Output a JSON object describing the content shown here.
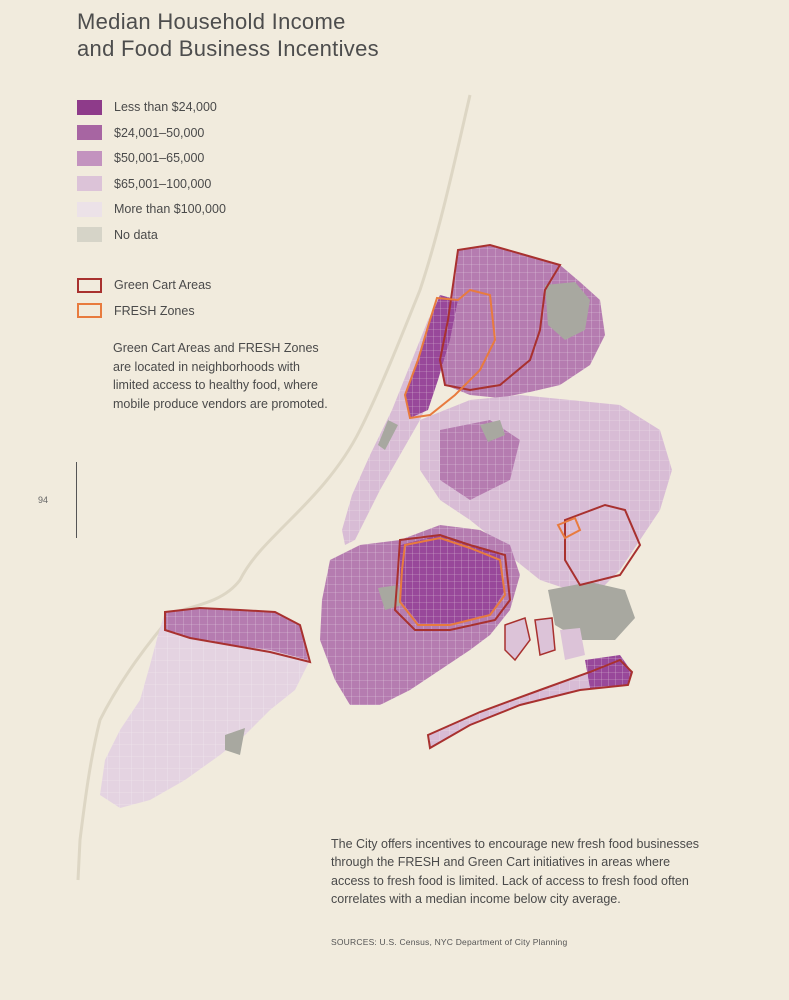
{
  "title": {
    "line1": "Median Household Income",
    "line2": "and Food Business Incentives"
  },
  "legend": {
    "income": [
      {
        "label": "Less than $24,000",
        "color": "#8e3b8a"
      },
      {
        "label": "$24,001–50,000",
        "color": "#a765a2"
      },
      {
        "label": "$50,001–65,000",
        "color": "#c393bf"
      },
      {
        "label": "$65,001–100,000",
        "color": "#dcc3d8"
      },
      {
        "label": "More than $100,000",
        "color": "#ece2e8"
      },
      {
        "label": "No data",
        "color": "#d6d4c8"
      }
    ],
    "zones": [
      {
        "label": "Green Cart Areas",
        "color": "#a8312f"
      },
      {
        "label": "FRESH Zones",
        "color": "#e87b3e"
      }
    ]
  },
  "note": "Green Cart Areas and FRESH Zones are located in neighborhoods with limited access to healthy food, where mobile produce vendors are promoted.",
  "page_number": "94",
  "body_text": "The City offers incentives to encourage new fresh food businesses through the FRESH and Green Cart initiatives in areas where access to fresh food is limited. Lack of access to fresh food often correlates with a median income below city average.",
  "sources": "SOURCES: U.S. Census, NYC Department of City Planning",
  "map_colors": {
    "land": "#e7e1d0",
    "water": "#f1ebdd",
    "park": "#a8a8a0",
    "border_green_cart": "#a8312f",
    "border_fresh": "#e87b3e"
  }
}
